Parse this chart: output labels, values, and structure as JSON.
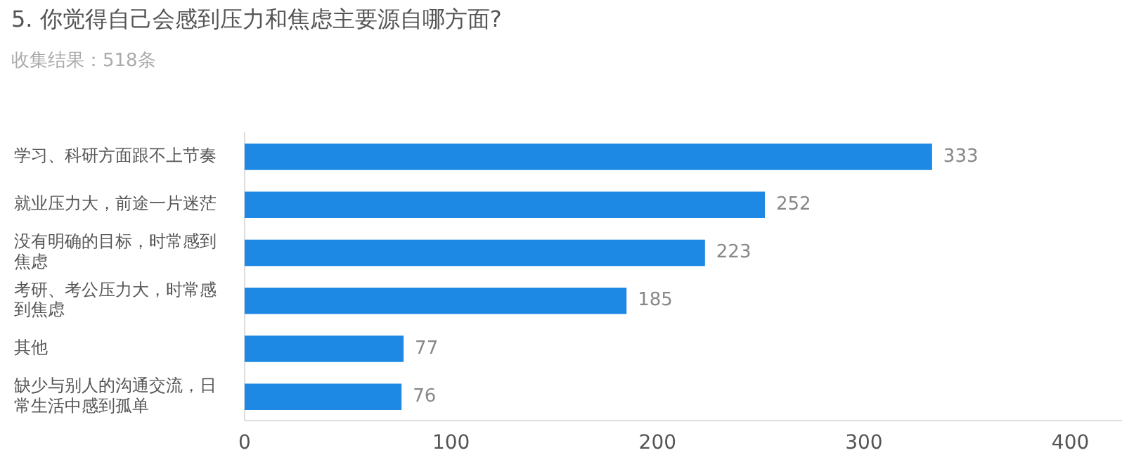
{
  "chart_data": {
    "type": "bar",
    "orientation": "horizontal",
    "title": "5.  你觉得自己会感到压力和焦虑主要源自哪方面?",
    "subtitle": "收集结果：518条",
    "categories": [
      "学习、科研方面跟不上节奏",
      "就业压力大，前途一片迷茫",
      "没有明确的目标，时常感到焦虑",
      "考研、考公压力大，时常感到焦虑",
      "其他",
      "缺少与别人的沟通交流，日常生活中感到孤单"
    ],
    "values": [
      333,
      252,
      223,
      185,
      77,
      76
    ],
    "color": "#1e88e5",
    "xlim": [
      0,
      425
    ],
    "xticks": [
      0,
      100,
      200,
      300,
      400
    ],
    "grid": false,
    "data_labels": true,
    "legend": false
  }
}
